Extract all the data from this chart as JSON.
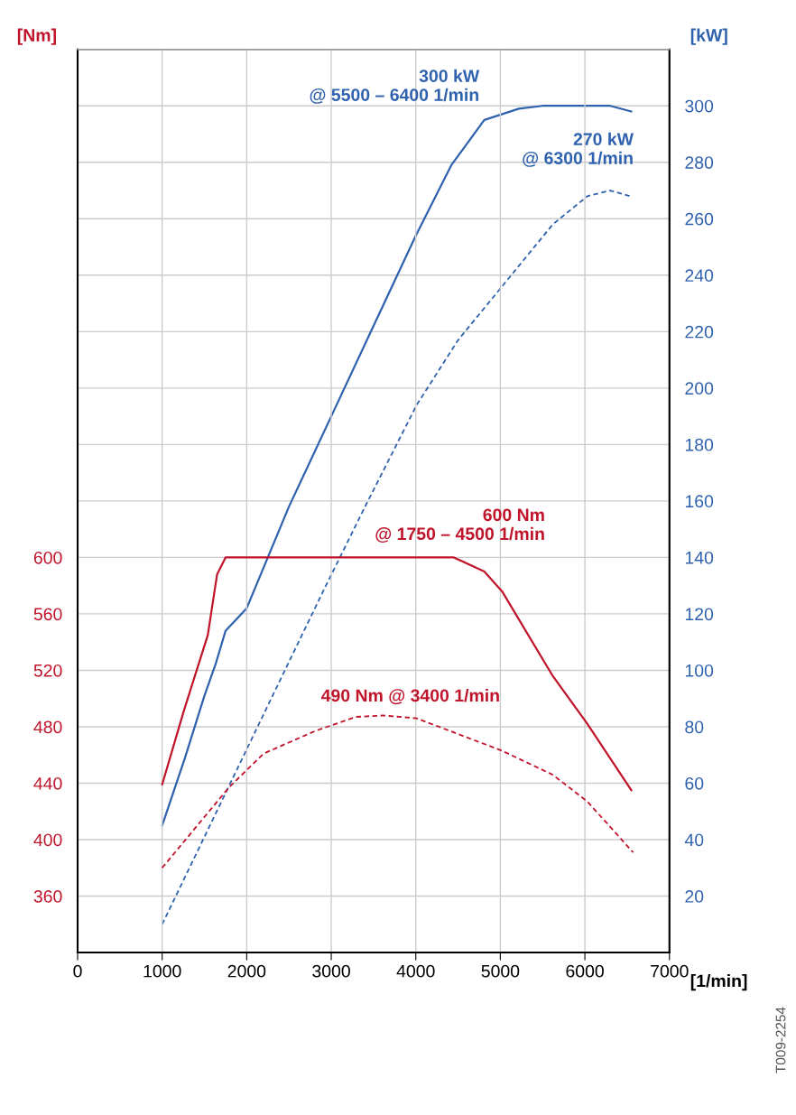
{
  "chart_data": {
    "type": "line",
    "xlabel": "[1/min]",
    "ylabel": "[Nm]",
    "y2label": "[kW]",
    "xlim": [
      0,
      7000
    ],
    "xticks": [
      0,
      1000,
      2000,
      3000,
      4000,
      5000,
      6000,
      7000
    ],
    "ylim": [
      320,
      960
    ],
    "yticks": [
      360,
      400,
      440,
      480,
      520,
      560,
      600
    ],
    "y2lim": [
      0,
      320
    ],
    "y2ticks": [
      20,
      40,
      60,
      80,
      100,
      120,
      140,
      160,
      180,
      200,
      220,
      240,
      260,
      280,
      300
    ],
    "grid": true,
    "marker": "none",
    "series": [
      {
        "color": "#2f62ae",
        "axis": "y2",
        "line_style": "solid",
        "x": [
          1000,
          1270,
          1500,
          1630,
          1750,
          2000,
          2500,
          3000,
          3500,
          4000,
          4420,
          4810,
          5220,
          5500,
          6000,
          6300,
          6550
        ],
        "values": [
          45,
          69,
          91,
          102,
          114,
          122,
          158,
          190,
          222,
          254,
          279,
          295,
          299,
          300,
          300,
          300,
          298
        ]
      },
      {
        "color": "#2f62ae",
        "axis": "y2",
        "line_style": "dashed",
        "x": [
          1000,
          1500,
          2000,
          2500,
          2920,
          3400,
          4010,
          4500,
          5020,
          5620,
          6030,
          6300,
          6530
        ],
        "values": [
          10,
          41,
          72,
          103,
          129,
          158,
          194,
          217,
          236,
          258,
          268,
          270,
          268
        ]
      },
      {
        "color": "#c0142b",
        "line_style": "solid",
        "x": [
          1000,
          1250,
          1540,
          1650,
          1750,
          2000,
          3000,
          4000,
          4450,
          4810,
          5020,
          5620,
          6030,
          6550
        ],
        "values": [
          439,
          490,
          545,
          588,
          600,
          600,
          600,
          600,
          600,
          590,
          576,
          516,
          482,
          435
        ]
      },
      {
        "color": "#c0142b",
        "line_style": "dashed",
        "x": [
          1000,
          1790,
          2200,
          2810,
          3290,
          3610,
          4010,
          5020,
          5620,
          6030,
          6570
        ],
        "values": [
          380,
          437,
          461,
          477,
          487,
          488,
          486,
          463,
          446,
          427,
          391
        ]
      }
    ],
    "annotations": [
      "300 kW\n@ 5500 – 6400 1/min",
      "270 kW\n@ 6300 1/min",
      "600 Nm\n@ 1750 – 4500 1/min",
      "490 Nm @ 3400 1/min",
      "T009-2254"
    ]
  }
}
